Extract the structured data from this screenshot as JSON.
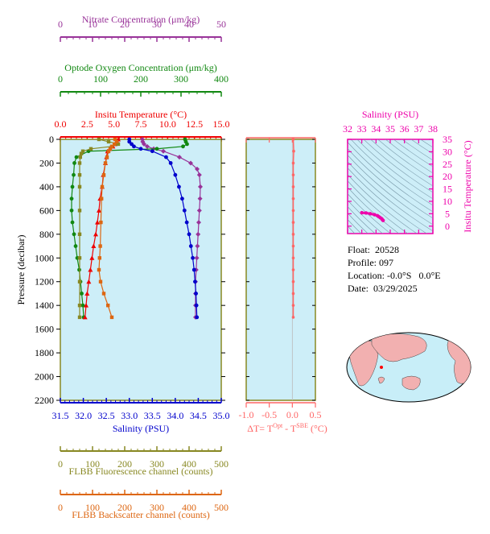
{
  "chart_data": [
    {
      "type": "line",
      "name": "main-profile",
      "ylabel": "Pressure (decibar)",
      "ylim": [
        2200,
        0
      ],
      "yticks": [
        0,
        200,
        400,
        600,
        800,
        1000,
        1200,
        1400,
        1600,
        1800,
        2000,
        2200
      ],
      "axes": [
        {
          "key": "nitrate",
          "label": "Nitrate Concentration (μm/kg)",
          "color": "#993399",
          "range": [
            0,
            50
          ],
          "ticks": [
            0,
            10,
            20,
            30,
            40,
            50
          ]
        },
        {
          "key": "oxygen",
          "label": "Optode Oxygen Concentration (μm/kg)",
          "color": "#118811",
          "range": [
            0,
            400
          ],
          "ticks": [
            0,
            100,
            200,
            300,
            400
          ]
        },
        {
          "key": "temperature",
          "label": "Insitu Temperature (°C)",
          "color": "#ee0000",
          "range": [
            0,
            15
          ],
          "ticks": [
            "0.0",
            "2.5",
            "5.0",
            "7.5",
            "10.0",
            "12.5",
            "15.0"
          ]
        },
        {
          "key": "salinity",
          "label": "Salinity (PSU)",
          "color": "#0000cc",
          "range": [
            31.5,
            35.0
          ],
          "ticks": [
            "31.5",
            "32.0",
            "32.5",
            "33.0",
            "33.5",
            "34.0",
            "34.5",
            "35.0"
          ]
        },
        {
          "key": "fluorescence",
          "label": "FLBB Fluorescence channel (counts)",
          "color": "#888822",
          "range": [
            0,
            500
          ],
          "ticks": [
            0,
            100,
            200,
            300,
            400,
            500
          ]
        },
        {
          "key": "backscatter",
          "label": "FLBB Backscatter channel (counts)",
          "color": "#dd6611",
          "range": [
            0,
            500
          ],
          "ticks": [
            0,
            100,
            200,
            300,
            400,
            500
          ]
        }
      ],
      "series": [
        {
          "key": "nitrate",
          "marker": "diamond",
          "color": "#993399",
          "pressure": [
            0,
            20,
            40,
            60,
            80,
            100,
            150,
            200,
            250,
            300,
            400,
            500,
            600,
            700,
            800,
            900,
            1000,
            1100,
            1200,
            1300,
            1400,
            1500
          ],
          "values": [
            25.5,
            25.6,
            26.0,
            27.0,
            29.0,
            32.0,
            37.0,
            40.5,
            42.5,
            43.2,
            43.5,
            43.4,
            43.2,
            43.0,
            42.8,
            42.6,
            42.4,
            42.2,
            42.0,
            42.0,
            42.0,
            42.0
          ]
        },
        {
          "key": "oxygen",
          "marker": "circle",
          "color": "#118811",
          "pressure": [
            0,
            20,
            40,
            60,
            80,
            100,
            150,
            200,
            300,
            400,
            500,
            600,
            700,
            800,
            900,
            1000,
            1100,
            1200,
            1300,
            1400,
            1500
          ],
          "values": [
            310,
            312,
            315,
            305,
            240,
            70,
            40,
            35,
            33,
            30,
            28,
            28,
            30,
            34,
            38,
            42,
            47,
            50,
            53,
            56,
            58
          ]
        },
        {
          "key": "temperature",
          "marker": "triangle",
          "color": "#ee0000",
          "pressure": [
            0,
            20,
            40,
            60,
            80,
            100,
            150,
            200,
            300,
            400,
            500,
            600,
            700,
            800,
            900,
            1000,
            1100,
            1200,
            1300,
            1400,
            1500
          ],
          "values": [
            5.4,
            5.3,
            5.1,
            4.9,
            4.6,
            4.4,
            4.3,
            4.2,
            4.0,
            3.9,
            3.7,
            3.6,
            3.45,
            3.3,
            3.1,
            2.95,
            2.8,
            2.65,
            2.5,
            2.4,
            2.3
          ]
        },
        {
          "key": "salinity",
          "marker": "circle",
          "color": "#0000cc",
          "pressure": [
            0,
            20,
            40,
            60,
            80,
            100,
            150,
            200,
            300,
            400,
            500,
            600,
            700,
            800,
            900,
            1000,
            1100,
            1200,
            1300,
            1400,
            1500
          ],
          "values": [
            33.0,
            33.0,
            33.05,
            33.1,
            33.25,
            33.5,
            33.8,
            33.9,
            34.0,
            34.08,
            34.15,
            34.2,
            34.25,
            34.3,
            34.34,
            34.38,
            34.41,
            34.43,
            34.45,
            34.46,
            34.47
          ]
        },
        {
          "key": "fluorescence",
          "marker": "square",
          "color": "#888822",
          "pressure": [
            0,
            20,
            40,
            60,
            80,
            100,
            120,
            150,
            200,
            300,
            400,
            600,
            800,
            1000,
            1200,
            1400,
            1500
          ],
          "values": [
            120,
            150,
            180,
            160,
            95,
            70,
            65,
            62,
            60,
            60,
            60,
            60,
            60,
            60,
            60,
            60,
            60
          ]
        },
        {
          "key": "backscatter",
          "marker": "square",
          "color": "#dd6611",
          "pressure": [
            0,
            20,
            40,
            60,
            80,
            100,
            150,
            200,
            300,
            400,
            500,
            700,
            900,
            1000,
            1100,
            1200,
            1300,
            1400,
            1500
          ],
          "values": [
            170,
            175,
            168,
            160,
            155,
            150,
            145,
            140,
            135,
            130,
            128,
            126,
            124,
            122,
            120,
            125,
            135,
            148,
            160
          ]
        }
      ]
    },
    {
      "type": "scatter",
      "name": "delta-temperature",
      "xlabel": "ΔT= T",
      "xlabel_sup1": "Opt",
      "xlabel_mid": " - T",
      "xlabel_sup2": "SBE",
      "xlabel_end": " (°C)",
      "xlim": [
        -1.0,
        0.5
      ],
      "xticks": [
        "-1.0",
        "-0.5",
        "0.0",
        "0.5"
      ],
      "color": "#ff6666",
      "pressure": [
        0,
        100,
        200,
        300,
        400,
        500,
        600,
        700,
        800,
        900,
        1000,
        1100,
        1200,
        1300,
        1400,
        1500
      ],
      "values": [
        0.02,
        0.03,
        0.02,
        0.02,
        0.02,
        0.02,
        0.02,
        0.02,
        0.02,
        0.02,
        0.02,
        0.02,
        0.02,
        0.02,
        0.02,
        0.02
      ]
    },
    {
      "type": "scatter",
      "name": "ts-diagram",
      "xlabel": "Salinity (PSU)",
      "ylabel": "Insitu Temperature (°C)",
      "xlim": [
        32,
        38
      ],
      "ylim": [
        -3,
        35
      ],
      "xticks": [
        32,
        33,
        34,
        35,
        36,
        37,
        38
      ],
      "yticks": [
        0,
        5,
        10,
        15,
        20,
        25,
        30,
        35
      ],
      "color": "#ee00aa",
      "salinity": [
        33.0,
        33.3,
        33.6,
        33.9,
        34.1,
        34.2,
        34.3,
        34.4,
        34.45,
        34.5
      ],
      "temperature": [
        5.4,
        5.3,
        5.0,
        4.6,
        4.2,
        3.8,
        3.4,
        3.0,
        2.6,
        2.3
      ]
    }
  ],
  "float_info": {
    "float_label": "Float:",
    "float_value": "20528",
    "profile_label": "Profile:",
    "profile_value": "097",
    "location_label": "Location:",
    "location_value": "-0.0°S   0.0°E",
    "date_label": "Date:",
    "date_value": "03/29/2025"
  },
  "map": {
    "ocean_color": "#c8eef8",
    "land_color": "#f2b0b0",
    "marker_color": "#ff0000"
  }
}
